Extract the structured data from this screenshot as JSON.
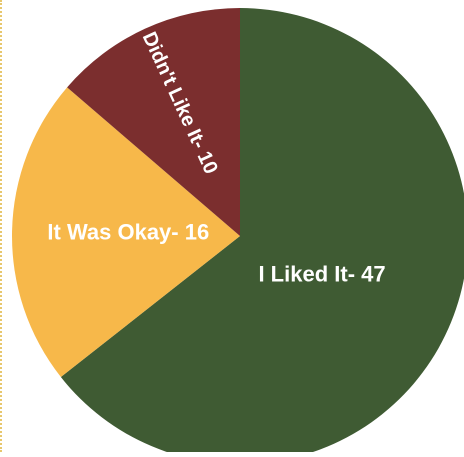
{
  "chart_data": {
    "type": "pie",
    "slices": [
      {
        "label": "I Liked It- 47",
        "value": 47,
        "color": "#3f5b33"
      },
      {
        "label": "It Was Okay- 16",
        "value": 16,
        "color": "#f7b84a"
      },
      {
        "label": "Didn't Like It- 10",
        "value": 10,
        "color": "#7b2e2e"
      }
    ],
    "title": "",
    "legend": "none",
    "start_angle_deg": 0,
    "direction": "clockwise"
  }
}
